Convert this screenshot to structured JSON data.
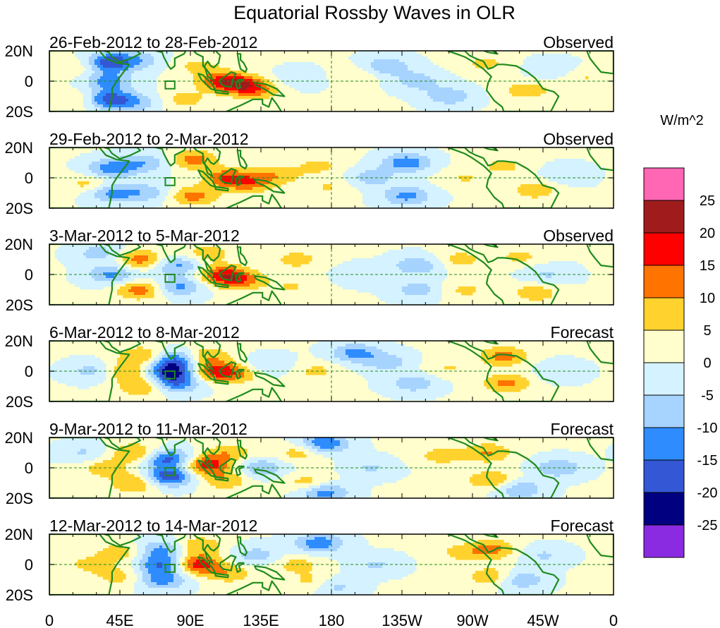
{
  "chart_data": {
    "type": "heatmap",
    "title": "Equatorial Rossby Waves in OLR",
    "colorbar": {
      "unit_label": "W/m^2",
      "bins": [
        {
          "color": "#ff66b3"
        },
        {
          "color": "#a01c1c"
        },
        {
          "color": "#ff0000"
        },
        {
          "color": "#ff7300"
        },
        {
          "color": "#ffd22e"
        },
        {
          "color": "#fffecc"
        },
        {
          "color": "#d4f2ff"
        },
        {
          "color": "#a7d3ff"
        },
        {
          "color": "#2e8cff"
        },
        {
          "color": "#3457d5"
        },
        {
          "color": "#000080"
        },
        {
          "color": "#8a2be2"
        }
      ],
      "tick_labels": [
        "25",
        "20",
        "15",
        "10",
        "5",
        "0",
        "-5",
        "-10",
        "-15",
        "-20",
        "-25"
      ]
    },
    "x_axis": {
      "range_degrees_east": [
        0,
        360
      ],
      "ticks": [
        {
          "lon": 0,
          "label": "0"
        },
        {
          "lon": 45,
          "label": "45E"
        },
        {
          "lon": 90,
          "label": "90E"
        },
        {
          "lon": 135,
          "label": "135E"
        },
        {
          "lon": 180,
          "label": "180"
        },
        {
          "lon": 225,
          "label": "135W"
        },
        {
          "lon": 270,
          "label": "90W"
        },
        {
          "lon": 315,
          "label": "45W"
        },
        {
          "lon": 360,
          "label": "0"
        }
      ]
    },
    "y_axis": {
      "range_degrees_north": [
        -20,
        20
      ],
      "ticks": [
        {
          "lat": 20,
          "label": "20N"
        },
        {
          "lat": 0,
          "label": "0"
        },
        {
          "lat": -20,
          "label": "20S"
        }
      ]
    },
    "box_outline": {
      "lon": [
        74,
        80
      ],
      "lat": [
        -5,
        0
      ]
    },
    "panels": [
      {
        "date_range": "26-Feb-2012 to 28-Feb-2012",
        "status": "Observed",
        "anomalies": [
          {
            "lon": 36,
            "lat": 12,
            "value": -20
          },
          {
            "lon": 36,
            "lat": -12,
            "value": -20
          },
          {
            "lon": 38,
            "lat": 0,
            "value": -12
          },
          {
            "lon": 22,
            "lat": 10,
            "value": 8
          },
          {
            "lon": 22,
            "lat": -12,
            "value": 9
          },
          {
            "lon": 56,
            "lat": 14,
            "value": -9
          },
          {
            "lon": 56,
            "lat": -14,
            "value": -8
          },
          {
            "lon": 110,
            "lat": 0,
            "value": 14
          },
          {
            "lon": 122,
            "lat": -2,
            "value": 12
          },
          {
            "lon": 132,
            "lat": -6,
            "value": 10
          },
          {
            "lon": 95,
            "lat": 10,
            "value": 6
          },
          {
            "lon": 86,
            "lat": -12,
            "value": 7
          },
          {
            "lon": 160,
            "lat": 2,
            "value": -5
          },
          {
            "lon": 195,
            "lat": 4,
            "value": 5
          },
          {
            "lon": 215,
            "lat": 10,
            "value": -10
          },
          {
            "lon": 235,
            "lat": 0,
            "value": -8
          },
          {
            "lon": 255,
            "lat": -10,
            "value": -9
          },
          {
            "lon": 278,
            "lat": 12,
            "value": 6
          },
          {
            "lon": 305,
            "lat": -6,
            "value": 8
          },
          {
            "lon": 320,
            "lat": 8,
            "value": -5
          },
          {
            "lon": 342,
            "lat": 2,
            "value": 5
          }
        ]
      },
      {
        "date_range": "29-Feb-2012 to 2-Mar-2012",
        "status": "Observed",
        "anomalies": [
          {
            "lon": 40,
            "lat": 6,
            "value": -14
          },
          {
            "lon": 40,
            "lat": -10,
            "value": -12
          },
          {
            "lon": 25,
            "lat": -4,
            "value": 7
          },
          {
            "lon": 62,
            "lat": 10,
            "value": -9
          },
          {
            "lon": 62,
            "lat": -10,
            "value": -8
          },
          {
            "lon": 92,
            "lat": 12,
            "value": 12
          },
          {
            "lon": 92,
            "lat": -12,
            "value": 12
          },
          {
            "lon": 114,
            "lat": 0,
            "value": 14
          },
          {
            "lon": 128,
            "lat": -4,
            "value": 10
          },
          {
            "lon": 145,
            "lat": 2,
            "value": 8
          },
          {
            "lon": 172,
            "lat": 8,
            "value": 6
          },
          {
            "lon": 178,
            "lat": -6,
            "value": 5
          },
          {
            "lon": 205,
            "lat": 0,
            "value": -8
          },
          {
            "lon": 228,
            "lat": 10,
            "value": -14
          },
          {
            "lon": 228,
            "lat": -12,
            "value": -12
          },
          {
            "lon": 265,
            "lat": 0,
            "value": 5
          },
          {
            "lon": 290,
            "lat": 8,
            "value": 6
          },
          {
            "lon": 310,
            "lat": -8,
            "value": 8
          },
          {
            "lon": 330,
            "lat": 2,
            "value": -5
          }
        ]
      },
      {
        "date_range": "3-Mar-2012 to 5-Mar-2012",
        "status": "Observed",
        "anomalies": [
          {
            "lon": 40,
            "lat": 0,
            "value": -12
          },
          {
            "lon": 32,
            "lat": 14,
            "value": -8
          },
          {
            "lon": 58,
            "lat": 10,
            "value": 13
          },
          {
            "lon": 58,
            "lat": -10,
            "value": 13
          },
          {
            "lon": 82,
            "lat": 6,
            "value": -12
          },
          {
            "lon": 82,
            "lat": -8,
            "value": -12
          },
          {
            "lon": 100,
            "lat": 14,
            "value": 8
          },
          {
            "lon": 110,
            "lat": 0,
            "value": 15
          },
          {
            "lon": 122,
            "lat": -4,
            "value": 12
          },
          {
            "lon": 158,
            "lat": 10,
            "value": 7
          },
          {
            "lon": 155,
            "lat": -8,
            "value": 5
          },
          {
            "lon": 200,
            "lat": 0,
            "value": -5
          },
          {
            "lon": 235,
            "lat": 6,
            "value": -10
          },
          {
            "lon": 235,
            "lat": -10,
            "value": -8
          },
          {
            "lon": 262,
            "lat": 10,
            "value": 7
          },
          {
            "lon": 265,
            "lat": -10,
            "value": 6
          },
          {
            "lon": 300,
            "lat": 12,
            "value": 6
          },
          {
            "lon": 310,
            "lat": -12,
            "value": 8
          },
          {
            "lon": 318,
            "lat": 0,
            "value": -6
          }
        ]
      },
      {
        "date_range": "6-Mar-2012 to 8-Mar-2012",
        "status": "Forecast",
        "anomalies": [
          {
            "lon": 28,
            "lat": 0,
            "value": -8
          },
          {
            "lon": 48,
            "lat": 0,
            "value": 10
          },
          {
            "lon": 60,
            "lat": 10,
            "value": 11
          },
          {
            "lon": 60,
            "lat": -10,
            "value": 11
          },
          {
            "lon": 80,
            "lat": 8,
            "value": -15
          },
          {
            "lon": 80,
            "lat": -8,
            "value": -15
          },
          {
            "lon": 78,
            "lat": 0,
            "value": -20
          },
          {
            "lon": 100,
            "lat": 10,
            "value": 10
          },
          {
            "lon": 105,
            "lat": 0,
            "value": 16
          },
          {
            "lon": 120,
            "lat": -2,
            "value": 8
          },
          {
            "lon": 140,
            "lat": 4,
            "value": -6
          },
          {
            "lon": 170,
            "lat": 0,
            "value": 6
          },
          {
            "lon": 195,
            "lat": 12,
            "value": -12
          },
          {
            "lon": 215,
            "lat": 6,
            "value": -8
          },
          {
            "lon": 232,
            "lat": -8,
            "value": -9
          },
          {
            "lon": 255,
            "lat": 2,
            "value": 5
          },
          {
            "lon": 290,
            "lat": 10,
            "value": 12
          },
          {
            "lon": 292,
            "lat": -8,
            "value": 11
          },
          {
            "lon": 325,
            "lat": 0,
            "value": -5
          }
        ]
      },
      {
        "date_range": "9-Mar-2012 to 11-Mar-2012",
        "status": "Forecast",
        "anomalies": [
          {
            "lon": 22,
            "lat": 10,
            "value": -6
          },
          {
            "lon": 35,
            "lat": 0,
            "value": 8
          },
          {
            "lon": 55,
            "lat": 10,
            "value": 11
          },
          {
            "lon": 55,
            "lat": -10,
            "value": 11
          },
          {
            "lon": 76,
            "lat": 6,
            "value": -18
          },
          {
            "lon": 76,
            "lat": -6,
            "value": -20
          },
          {
            "lon": 100,
            "lat": 2,
            "value": 18
          },
          {
            "lon": 115,
            "lat": 10,
            "value": 8
          },
          {
            "lon": 112,
            "lat": -8,
            "value": 9
          },
          {
            "lon": 135,
            "lat": 0,
            "value": -10
          },
          {
            "lon": 160,
            "lat": 10,
            "value": 8
          },
          {
            "lon": 165,
            "lat": -10,
            "value": 8
          },
          {
            "lon": 175,
            "lat": 16,
            "value": -16
          },
          {
            "lon": 175,
            "lat": -16,
            "value": -14
          },
          {
            "lon": 205,
            "lat": 0,
            "value": -6
          },
          {
            "lon": 250,
            "lat": 8,
            "value": 7
          },
          {
            "lon": 280,
            "lat": 10,
            "value": 10
          },
          {
            "lon": 282,
            "lat": -8,
            "value": 10
          },
          {
            "lon": 300,
            "lat": -14,
            "value": -10
          },
          {
            "lon": 325,
            "lat": 0,
            "value": -10
          }
        ]
      },
      {
        "date_range": "12-Mar-2012 to 14-Mar-2012",
        "status": "Forecast",
        "anomalies": [
          {
            "lon": 25,
            "lat": 0,
            "value": 6
          },
          {
            "lon": 45,
            "lat": 8,
            "value": 8
          },
          {
            "lon": 45,
            "lat": -8,
            "value": 7
          },
          {
            "lon": 72,
            "lat": 0,
            "value": -16
          },
          {
            "lon": 72,
            "lat": 10,
            "value": -12
          },
          {
            "lon": 72,
            "lat": -10,
            "value": -13
          },
          {
            "lon": 94,
            "lat": 0,
            "value": 18
          },
          {
            "lon": 95,
            "lat": 12,
            "value": 10
          },
          {
            "lon": 115,
            "lat": -6,
            "value": 8
          },
          {
            "lon": 132,
            "lat": 6,
            "value": -8
          },
          {
            "lon": 158,
            "lat": 0,
            "value": 7
          },
          {
            "lon": 170,
            "lat": -12,
            "value": 9
          },
          {
            "lon": 172,
            "lat": 14,
            "value": -14
          },
          {
            "lon": 180,
            "lat": -14,
            "value": -10
          },
          {
            "lon": 208,
            "lat": 0,
            "value": -6
          },
          {
            "lon": 262,
            "lat": 8,
            "value": 6
          },
          {
            "lon": 283,
            "lat": 10,
            "value": 11
          },
          {
            "lon": 283,
            "lat": -8,
            "value": 10
          },
          {
            "lon": 300,
            "lat": -10,
            "value": -11
          },
          {
            "lon": 315,
            "lat": 6,
            "value": -6
          }
        ]
      }
    ]
  }
}
